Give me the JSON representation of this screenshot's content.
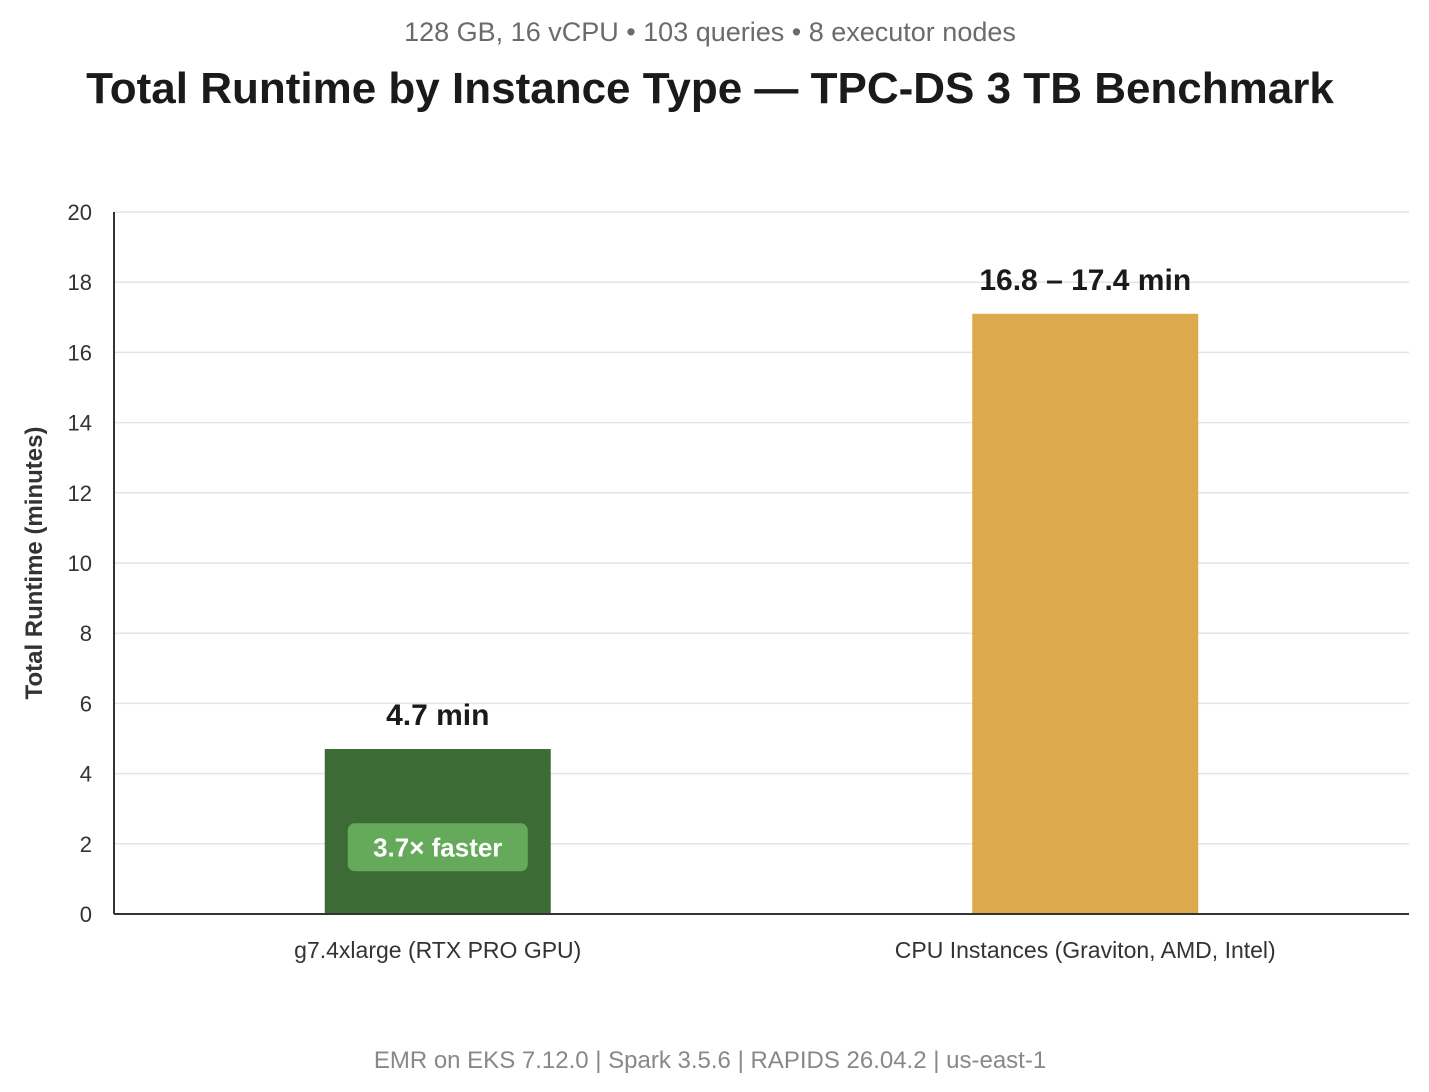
{
  "chart_data": {
    "type": "bar",
    "subtitle": "128 GB, 16 vCPU • 103 queries • 8 executor nodes",
    "title": "Total Runtime by Instance Type — TPC-DS 3 TB Benchmark",
    "ylabel": "Total Runtime (minutes)",
    "xlabel": "",
    "ylim": [
      0,
      20
    ],
    "yticks": [
      "0",
      "2",
      "4",
      "6",
      "8",
      "10",
      "12",
      "14",
      "16",
      "18",
      "20"
    ],
    "grid": true,
    "categories": [
      "g7.4xlarge (RTX PRO GPU)",
      "CPU Instances (Graviton, AMD, Intel)"
    ],
    "values": [
      4.7,
      17.1
    ],
    "data_labels": [
      "4.7 min",
      "16.8 – 17.4 min"
    ],
    "colors": [
      "#3d6b35",
      "#dcaa4c"
    ],
    "annotation": {
      "text": "3.7× faster",
      "bar_index": 0,
      "y": 1.9,
      "color": "#65a95a"
    },
    "footer": "EMR on EKS 7.12.0 | Spark 3.5.6 | RAPIDS 26.04.2 | us-east-1"
  }
}
